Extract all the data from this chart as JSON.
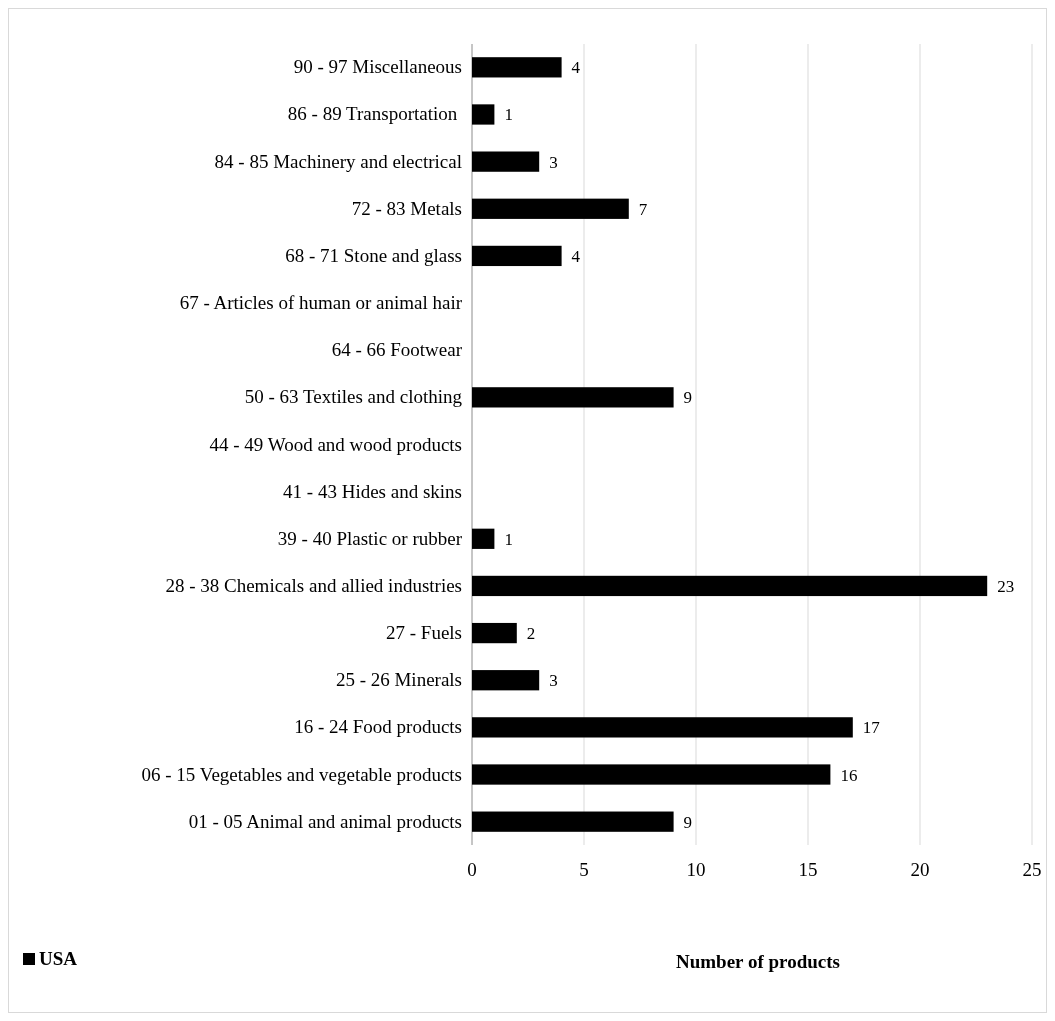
{
  "chart_data": {
    "type": "bar",
    "orientation": "horizontal",
    "categories": [
      "90 - 97 Miscellaneous",
      "86 - 89 Transportation ",
      "84 - 85 Machinery and electrical",
      "72 - 83 Metals",
      "68 - 71 Stone and glass",
      "67 - Articles of human or animal hair",
      "64 - 66 Footwear",
      "50 - 63 Textiles and clothing",
      "44 - 49 Wood and wood products",
      "41 - 43 Hides and skins",
      "39 - 40 Plastic or rubber",
      "28 - 38 Chemicals and allied industries",
      "27 - Fuels",
      "25 - 26 Minerals",
      "16 - 24 Food products",
      "06 - 15 Vegetables and vegetable products",
      "01 - 05 Animal and animal products"
    ],
    "series": [
      {
        "name": "USA",
        "color": "#000000",
        "values": [
          4,
          1,
          3,
          7,
          4,
          0,
          0,
          9,
          0,
          0,
          1,
          23,
          2,
          3,
          17,
          16,
          9
        ],
        "value_labels": [
          "4",
          "1",
          "3",
          "7",
          "4",
          null,
          null,
          "9",
          null,
          null,
          "1",
          "23",
          "2",
          "3",
          "17",
          "16",
          "9"
        ]
      }
    ],
    "xlim": [
      0,
      25
    ],
    "xticks": [
      0,
      5,
      10,
      15,
      20,
      25
    ],
    "grid": "x",
    "xlabel": "Number of products",
    "legend": "bottom left"
  }
}
